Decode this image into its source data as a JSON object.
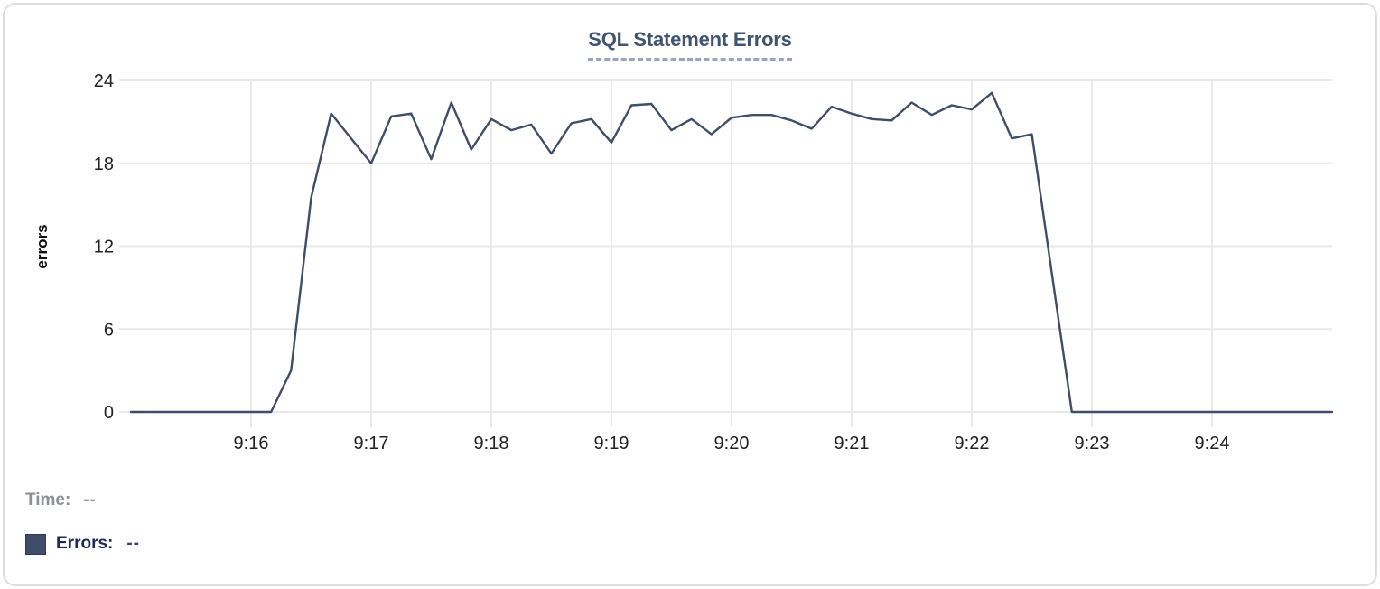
{
  "card": {
    "title": "SQL Statement Errors"
  },
  "legend": {
    "time_label": "Time:",
    "time_value": "--",
    "errors_label": "Errors:",
    "errors_value": "--",
    "swatch_color": "#3f4d68"
  },
  "chart_data": {
    "type": "line",
    "title": "SQL Statement Errors",
    "xlabel": "",
    "ylabel": "errors",
    "x_domain": [
      "9:15:00",
      "9:25:00"
    ],
    "x_ticks": [
      "9:16",
      "9:17",
      "9:18",
      "9:19",
      "9:20",
      "9:21",
      "9:22",
      "9:23",
      "9:24"
    ],
    "ylim": [
      0,
      24
    ],
    "y_ticks": [
      0,
      6,
      12,
      18,
      24
    ],
    "grid": true,
    "legend_position": "bottom-left",
    "line_color": "#3f4d68",
    "grid_color": "#e9e9e9",
    "series": [
      {
        "name": "Errors",
        "points": [
          [
            "9:15:00",
            0
          ],
          [
            "9:15:10",
            0
          ],
          [
            "9:15:20",
            0
          ],
          [
            "9:15:30",
            0
          ],
          [
            "9:15:40",
            0
          ],
          [
            "9:15:50",
            0
          ],
          [
            "9:16:00",
            0
          ],
          [
            "9:16:10",
            0
          ],
          [
            "9:16:20",
            3
          ],
          [
            "9:16:30",
            15.5
          ],
          [
            "9:16:40",
            21.6
          ],
          [
            "9:16:50",
            19.8
          ],
          [
            "9:17:00",
            18
          ],
          [
            "9:17:10",
            21.4
          ],
          [
            "9:17:20",
            21.6
          ],
          [
            "9:17:30",
            18.3
          ],
          [
            "9:17:40",
            22.4
          ],
          [
            "9:17:50",
            19
          ],
          [
            "9:18:00",
            21.2
          ],
          [
            "9:18:10",
            20.4
          ],
          [
            "9:18:20",
            20.8
          ],
          [
            "9:18:30",
            18.7
          ],
          [
            "9:18:40",
            20.9
          ],
          [
            "9:18:50",
            21.2
          ],
          [
            "9:19:00",
            19.5
          ],
          [
            "9:19:10",
            22.2
          ],
          [
            "9:19:20",
            22.3
          ],
          [
            "9:19:30",
            20.4
          ],
          [
            "9:19:40",
            21.2
          ],
          [
            "9:19:50",
            20.1
          ],
          [
            "9:20:00",
            21.3
          ],
          [
            "9:20:10",
            21.5
          ],
          [
            "9:20:20",
            21.5
          ],
          [
            "9:20:30",
            21.1
          ],
          [
            "9:20:40",
            20.5
          ],
          [
            "9:20:50",
            22.1
          ],
          [
            "9:21:00",
            21.6
          ],
          [
            "9:21:10",
            21.2
          ],
          [
            "9:21:20",
            21.1
          ],
          [
            "9:21:30",
            22.4
          ],
          [
            "9:21:40",
            21.5
          ],
          [
            "9:21:50",
            22.2
          ],
          [
            "9:22:00",
            21.9
          ],
          [
            "9:22:10",
            23.1
          ],
          [
            "9:22:20",
            19.8
          ],
          [
            "9:22:30",
            20.1
          ],
          [
            "9:22:40",
            10
          ],
          [
            "9:22:50",
            0
          ],
          [
            "9:23:00",
            0
          ],
          [
            "9:23:10",
            0
          ],
          [
            "9:23:20",
            0
          ],
          [
            "9:23:30",
            0
          ],
          [
            "9:23:40",
            0
          ],
          [
            "9:23:50",
            0
          ],
          [
            "9:24:00",
            0
          ],
          [
            "9:24:10",
            0
          ],
          [
            "9:24:20",
            0
          ],
          [
            "9:24:30",
            0
          ],
          [
            "9:24:40",
            0
          ],
          [
            "9:24:50",
            0
          ],
          [
            "9:25:00",
            0
          ]
        ]
      }
    ]
  }
}
